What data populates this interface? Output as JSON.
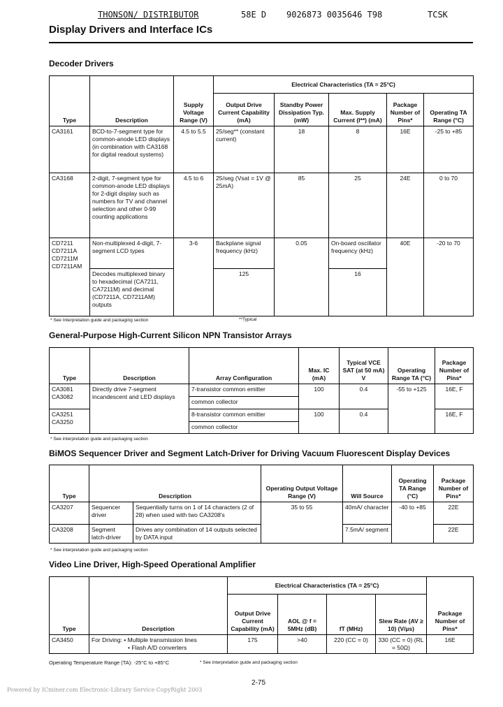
{
  "header": {
    "distributor": "THONSON/ DISTRIBUTOR",
    "code": "58E D",
    "barcode": "9026873 0035646 T98",
    "tag": "TCSK"
  },
  "title": "Display Drivers and Interface ICs",
  "decoder": {
    "title": "Decoder Drivers",
    "headers": {
      "type": "Type",
      "description": "Description",
      "supply": "Supply Voltage Range (V)",
      "group": "Electrical Characteristics (TA = 25°C)",
      "output": "Output Drive Current Capability (mA)",
      "standby": "Standby Power Dissipation Typ. (mW)",
      "max_supply": "Max. Supply Current (I**) (mA)",
      "package": "Package Number of Pins*",
      "temp": "Operating TA Range (°C)"
    },
    "rows": [
      {
        "type": "CA3161",
        "description": "BCD-to-7-segment type for common-anode LED displays (in combination with CA3168 for digital readout systems)",
        "supply": "4.5 to 5.5",
        "output": "25/seg** (constant current)",
        "standby": "18",
        "max_supply": "8",
        "package": "16E",
        "temp": "-25 to +85"
      },
      {
        "type": "CA3168",
        "description": "2-digit, 7-segment type for common-anode LED displays for 2-digit display such as numbers for TV and channel selection and other 0-99 counting applications",
        "supply": "4.5 to 6",
        "output": "25/seg (Vsat = 1V @ 25mA)",
        "standby": "85",
        "max_supply": "25",
        "package": "24E",
        "temp": "0 to 70"
      },
      {
        "types": [
          "CD7211",
          "CD7211A",
          "CD7211M",
          "CD7211AM"
        ],
        "description": "Non-multiplexed 4-digit, 7-segment LCD types",
        "description2": "Decodes multiplexed binary to hexadecimal (CA7211, CA7211M) and decimal (CD7211A, CD7211AM) outputs",
        "supply": "3-6",
        "output": "Backplane signal frequency (kHz)",
        "output2": "125",
        "standby": "0.05",
        "max_supply": "On-board oscillator frequency (kHz)",
        "max_supply2": "16",
        "package": "40E",
        "temp": "-20 to 70"
      }
    ],
    "note": "* See Interpretation guide and packaging section",
    "note2": "**Typical"
  },
  "arrays": {
    "title": "General-Purpose High-Current Silicon NPN Transistor Arrays",
    "headers": {
      "type": "Type",
      "description": "Description",
      "config": "Array Configuration",
      "ic": "Max. IC (mA)",
      "vce": "Typical VCE SAT (at 50 mA) V",
      "temp": "Operating Range TA (°C)",
      "package": "Package Number of Pins*"
    },
    "description": "Directly drive 7-segment incandescent and LED displays",
    "temp": "-55 to +125",
    "groups": [
      {
        "types": [
          "CA3081",
          "CA3082"
        ],
        "configs": [
          "7-transistor common emitter",
          "common collector"
        ],
        "ic": "100",
        "vce": "0.4",
        "package": "16E, F"
      },
      {
        "types": [
          "CA3251",
          "CA3250"
        ],
        "configs": [
          "8-transistor common emitter",
          "common collector"
        ],
        "ic": "100",
        "vce": "0.4",
        "package": "16E, F"
      }
    ],
    "note": "* See interpretation guide and packaging section"
  },
  "bimos": {
    "title": "BiMOS Sequencer Driver and Segment Latch-Driver for Driving Vacuum Fluorescent Display Devices",
    "headers": {
      "type": "Type",
      "description": "Description",
      "voltage": "Operating Output Voltage Range (V)",
      "source": "Will Source",
      "temp": "Operating TA Range (°C)",
      "package": "Package Number of Pins*"
    },
    "voltage": "35 to 55",
    "temp": "-40 to +85",
    "rows": [
      {
        "type": "CA3207",
        "kind": "Sequencer driver",
        "description": "Sequentially turns on 1 of 14 characters (2 of 28) when used with two CA3208's",
        "source": "40mA/ character",
        "package": "22E"
      },
      {
        "type": "CA3208",
        "kind": "Segment latch-driver",
        "description": "Drives any combination of 14 outputs selected by DATA input",
        "source": "7.5mA/ segment",
        "package": "22E"
      }
    ],
    "note": "* See interpretation guide and packaging section"
  },
  "video": {
    "title": "Video Line Driver, High-Speed Operational Amplifier",
    "headers": {
      "type": "Type",
      "description": "Description",
      "group": "Electrical Characteristics (TA = 25°C)",
      "output": "Output Drive Current Capability (mA)",
      "aol": "AOL @ f = 5MHz (dB)",
      "ft": "fT (MHz)",
      "slew": "Slew Rate (AV ≥ 10) (V/µs)",
      "package": "Package Number of Pins*"
    },
    "row": {
      "type": "CA3450",
      "lead": "For Driving:",
      "bullets": [
        "Multiple transmission lines",
        "Flash A/D converters"
      ],
      "output": "175",
      "aol": ">40",
      "ft": "220 (CC = 0)",
      "slew": "330 (CC = 0) (RL = 50Ω)",
      "package": "16E"
    },
    "temp_note": "Operating Temperature Range (TA): -25°C to +85°C",
    "note": "* See interpretation guide and packaging section"
  },
  "page_number": "2-75",
  "footer": "Powered by ICminer.com Electronic-Library Service CopyRight 2003"
}
